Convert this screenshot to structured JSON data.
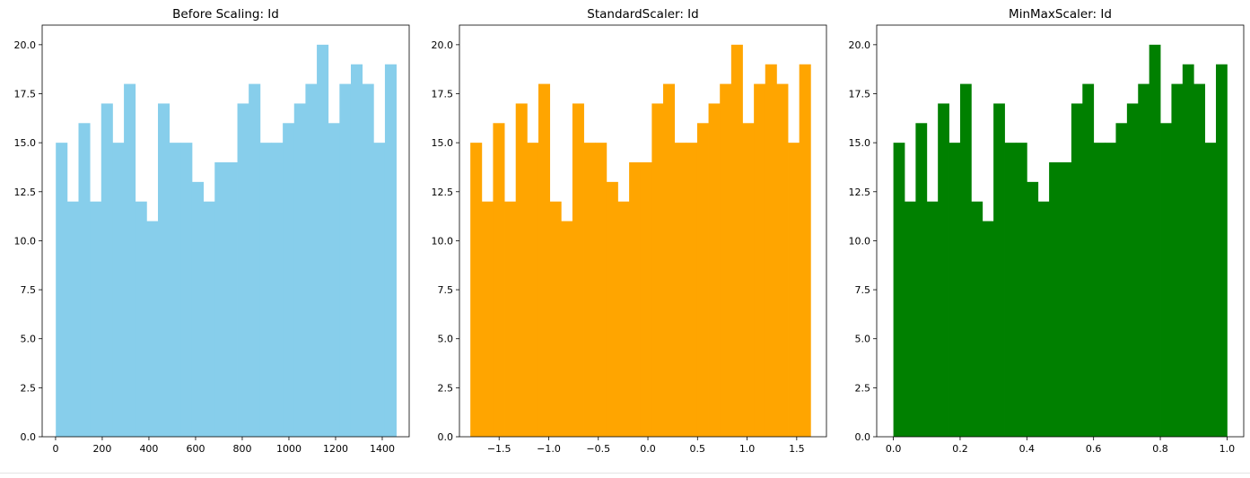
{
  "chart_data": [
    {
      "type": "bar",
      "title": "Before Scaling: Id",
      "color": "#87ceeb",
      "bins": 30,
      "xlim": [
        -57.45,
        1515.45
      ],
      "ylim": [
        0,
        21
      ],
      "x_range": [
        1,
        1460
      ],
      "xticks": [
        0,
        200,
        400,
        600,
        800,
        1000,
        1200,
        1400
      ],
      "xtick_labels": [
        "0",
        "200",
        "400",
        "600",
        "800",
        "1000",
        "1200",
        "1400"
      ],
      "yticks": [
        0,
        2.5,
        5,
        7.5,
        10,
        12.5,
        15,
        17.5,
        20
      ],
      "ytick_labels": [
        "0.0",
        "2.5",
        "5.0",
        "7.5",
        "10.0",
        "12.5",
        "15.0",
        "17.5",
        "20.0"
      ],
      "values": [
        15,
        12,
        16,
        12,
        17,
        15,
        18,
        12,
        11,
        17,
        15,
        15,
        13,
        12,
        14,
        14,
        17,
        18,
        15,
        15,
        16,
        17,
        18,
        20,
        16,
        18,
        19,
        18,
        15,
        19
      ]
    },
    {
      "type": "bar",
      "title": "StandardScaler: Id",
      "color": "#ffa500",
      "bins": 30,
      "xlim": [
        -1.9,
        1.8
      ],
      "ylim": [
        0,
        21
      ],
      "x_range": [
        -1.79,
        1.64
      ],
      "xticks": [
        -1.5,
        -1.0,
        -0.5,
        0.0,
        0.5,
        1.0,
        1.5
      ],
      "xtick_labels": [
        "−1.5",
        "−1.0",
        "−0.5",
        "0.0",
        "0.5",
        "1.0",
        "1.5"
      ],
      "yticks": [
        0,
        2.5,
        5,
        7.5,
        10,
        12.5,
        15,
        17.5,
        20
      ],
      "ytick_labels": [
        "0.0",
        "2.5",
        "5.0",
        "7.5",
        "10.0",
        "12.5",
        "15.0",
        "17.5",
        "20.0"
      ],
      "values": [
        15,
        12,
        16,
        12,
        17,
        15,
        18,
        12,
        11,
        17,
        15,
        15,
        13,
        12,
        14,
        14,
        17,
        18,
        15,
        15,
        16,
        17,
        18,
        20,
        16,
        18,
        19,
        18,
        15,
        19
      ]
    },
    {
      "type": "bar",
      "title": "MinMaxScaler: Id",
      "color": "#008000",
      "bins": 30,
      "xlim": [
        -0.05,
        1.05
      ],
      "ylim": [
        0,
        21
      ],
      "x_range": [
        0,
        1
      ],
      "xticks": [
        0.0,
        0.2,
        0.4,
        0.6,
        0.8,
        1.0
      ],
      "xtick_labels": [
        "0.0",
        "0.2",
        "0.4",
        "0.6",
        "0.8",
        "1.0"
      ],
      "yticks": [
        0,
        2.5,
        5,
        7.5,
        10,
        12.5,
        15,
        17.5,
        20
      ],
      "ytick_labels": [
        "0.0",
        "2.5",
        "5.0",
        "7.5",
        "10.0",
        "12.5",
        "15.0",
        "17.5",
        "20.0"
      ],
      "values": [
        15,
        12,
        16,
        12,
        17,
        15,
        18,
        12,
        11,
        17,
        15,
        15,
        13,
        12,
        14,
        14,
        17,
        18,
        15,
        15,
        16,
        17,
        18,
        20,
        16,
        18,
        19,
        18,
        15,
        19
      ]
    }
  ]
}
